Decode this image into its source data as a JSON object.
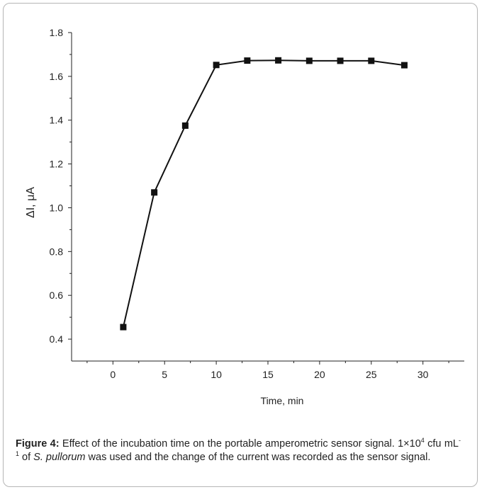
{
  "chart_data": {
    "type": "line",
    "x": [
      1,
      4,
      7,
      10,
      13,
      16,
      19,
      22,
      25,
      28.2
    ],
    "series": [
      {
        "values": [
          0.455,
          1.07,
          1.375,
          1.652,
          1.672,
          1.673,
          1.671,
          1.671,
          1.671,
          1.651
        ]
      }
    ],
    "xlabel": "Time, min",
    "ylabel": "ΔI, μA",
    "xlim": [
      -4,
      34
    ],
    "ylim": [
      0.3,
      1.8
    ],
    "xticks": [
      "0",
      "5",
      "10",
      "15",
      "20",
      "25",
      "30"
    ],
    "yticks": [
      "0.4",
      "0.6",
      "0.8",
      "1.0",
      "1.2",
      "1.4",
      "1.6",
      "1.8"
    ],
    "grid": false,
    "color": "#111111",
    "marker": "square"
  },
  "caption": {
    "label": "Figure 4:",
    "part1": " Effect of the incubation time on the portable amperometric sensor signal. 1×10",
    "sup1": "4",
    "part2": " cfu mL",
    "sup2": "-1",
    "part3": " of ",
    "species": "S. pullorum",
    "part4": " was used and the change of the current was recorded as the sensor signal."
  }
}
